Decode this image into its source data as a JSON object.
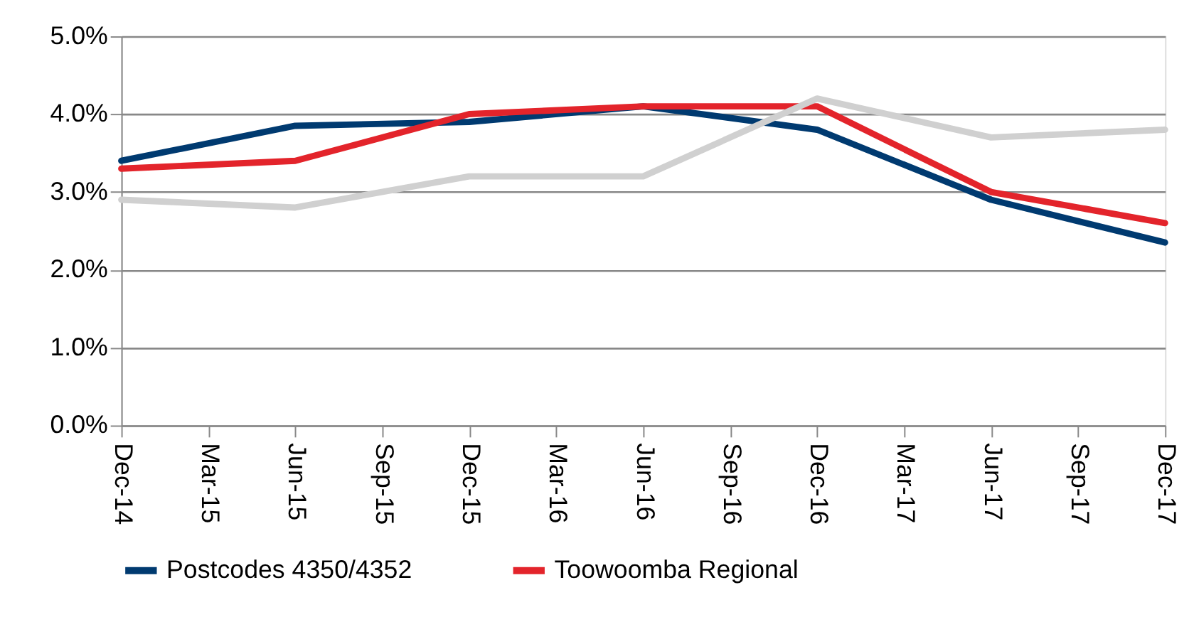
{
  "chart_data": {
    "type": "line",
    "categories": [
      "Dec-14",
      "Mar-15",
      "Jun-15",
      "Sep-15",
      "Dec-15",
      "Mar-16",
      "Jun-16",
      "Sep-16",
      "Dec-16",
      "Mar-17",
      "Jun-17",
      "Sep-17",
      "Dec-17"
    ],
    "series": [
      {
        "name": "Postcodes 4350/4352",
        "color": "#003a70",
        "values": [
          3.4,
          null,
          3.85,
          null,
          3.9,
          null,
          4.1,
          null,
          3.8,
          null,
          2.9,
          null,
          2.35
        ]
      },
      {
        "name": "Toowoomba Regional",
        "color": "#e3242b",
        "values": [
          3.3,
          null,
          3.4,
          null,
          4.0,
          null,
          4.1,
          null,
          4.1,
          null,
          3.0,
          null,
          2.6
        ]
      },
      {
        "color": "#d0d0d0",
        "values": [
          2.9,
          null,
          2.8,
          null,
          3.2,
          null,
          3.2,
          null,
          4.2,
          null,
          3.7,
          null,
          3.8
        ]
      }
    ],
    "ylim": [
      0,
      5
    ],
    "yticks": [
      {
        "value": 0,
        "label": "0.0%"
      },
      {
        "value": 1,
        "label": "1.0%"
      },
      {
        "value": 2,
        "label": "2.0%"
      },
      {
        "value": 3,
        "label": "3.0%"
      },
      {
        "value": 4,
        "label": "4.0%"
      },
      {
        "value": 5,
        "label": "5.0%"
      }
    ],
    "grid": "y",
    "legend": "bottom",
    "marker": "none",
    "line_style": "solid"
  }
}
